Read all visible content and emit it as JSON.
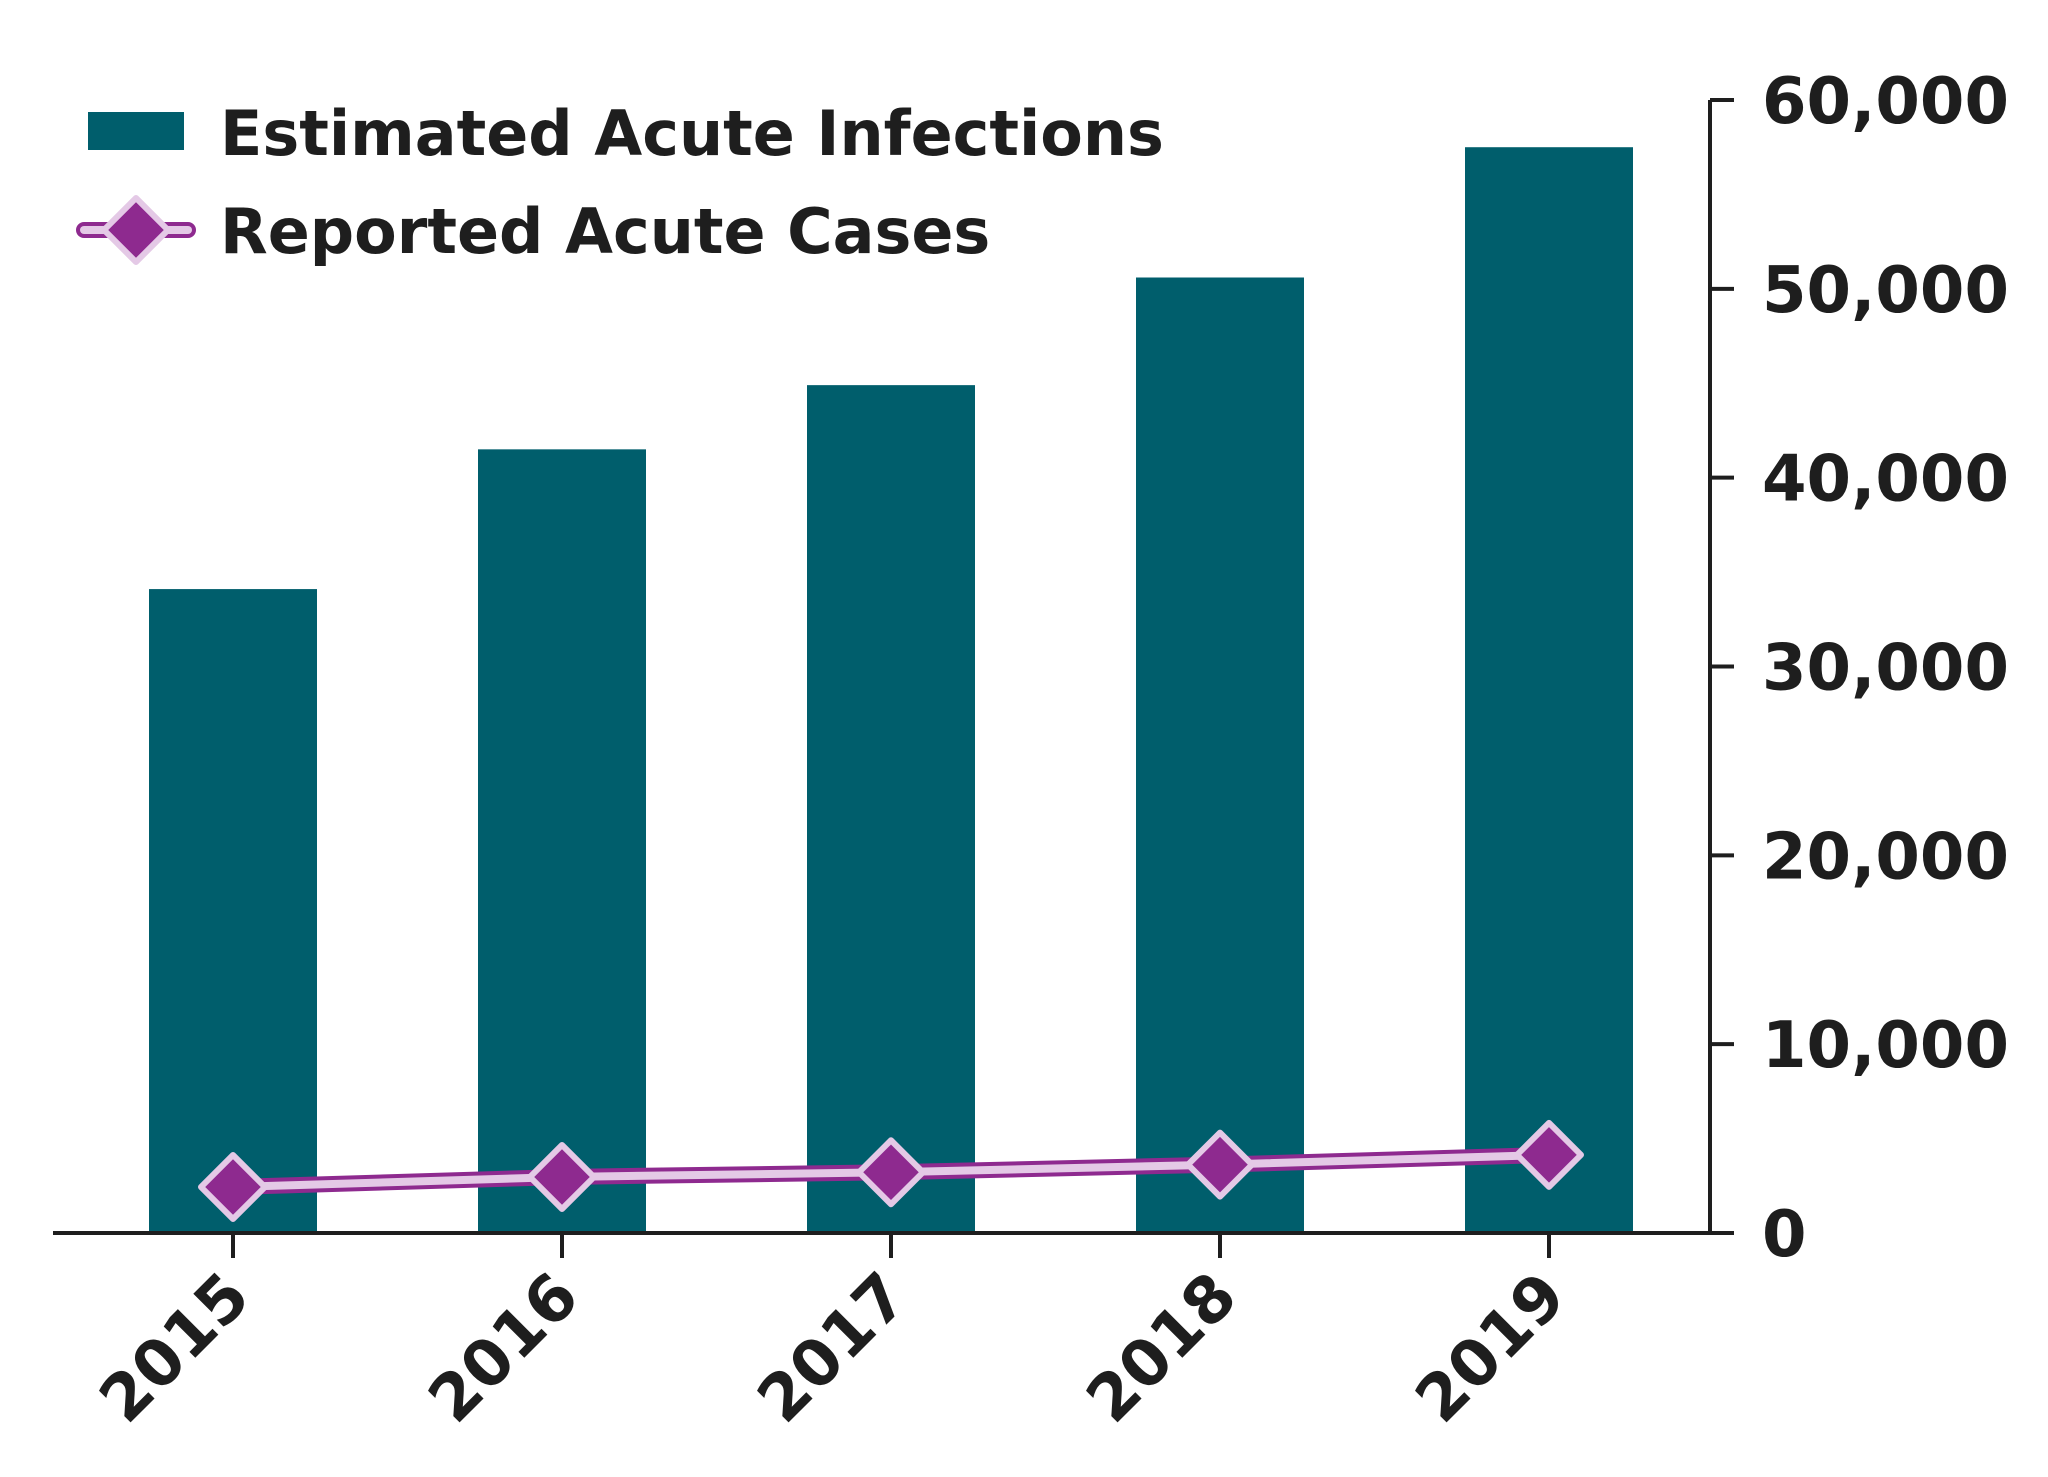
{
  "chart_data": {
    "type": "bar",
    "categories": [
      "2015",
      "2016",
      "2017",
      "2018",
      "2019"
    ],
    "series": [
      {
        "name": "Estimated Acute Infections",
        "type": "bar",
        "color": "#005e6c",
        "values": [
          34100,
          41500,
          44900,
          50600,
          57500
        ]
      },
      {
        "name": "Reported Acute Cases",
        "type": "line",
        "marker": "diamond",
        "color": "#8e2a8f",
        "marker_fill": "#8e2a8f",
        "marker_stroke": "#e4c9e6",
        "line_color": "#e4c9e6",
        "values": [
          2436,
          2967,
          3216,
          3621,
          4136
        ]
      }
    ],
    "y_axis": {
      "position": "right",
      "ticks": [
        0,
        10000,
        20000,
        30000,
        40000,
        50000,
        60000
      ],
      "tick_labels": [
        "0",
        "10,000",
        "20,000",
        "30,000",
        "40,000",
        "50,000",
        "60,000"
      ],
      "ylim": [
        0,
        60000
      ]
    },
    "x_axis": {
      "tick_rotation": -45
    },
    "legend": {
      "placement": "top-left"
    },
    "grid": false,
    "title": "",
    "xlabel": "",
    "ylabel": ""
  }
}
